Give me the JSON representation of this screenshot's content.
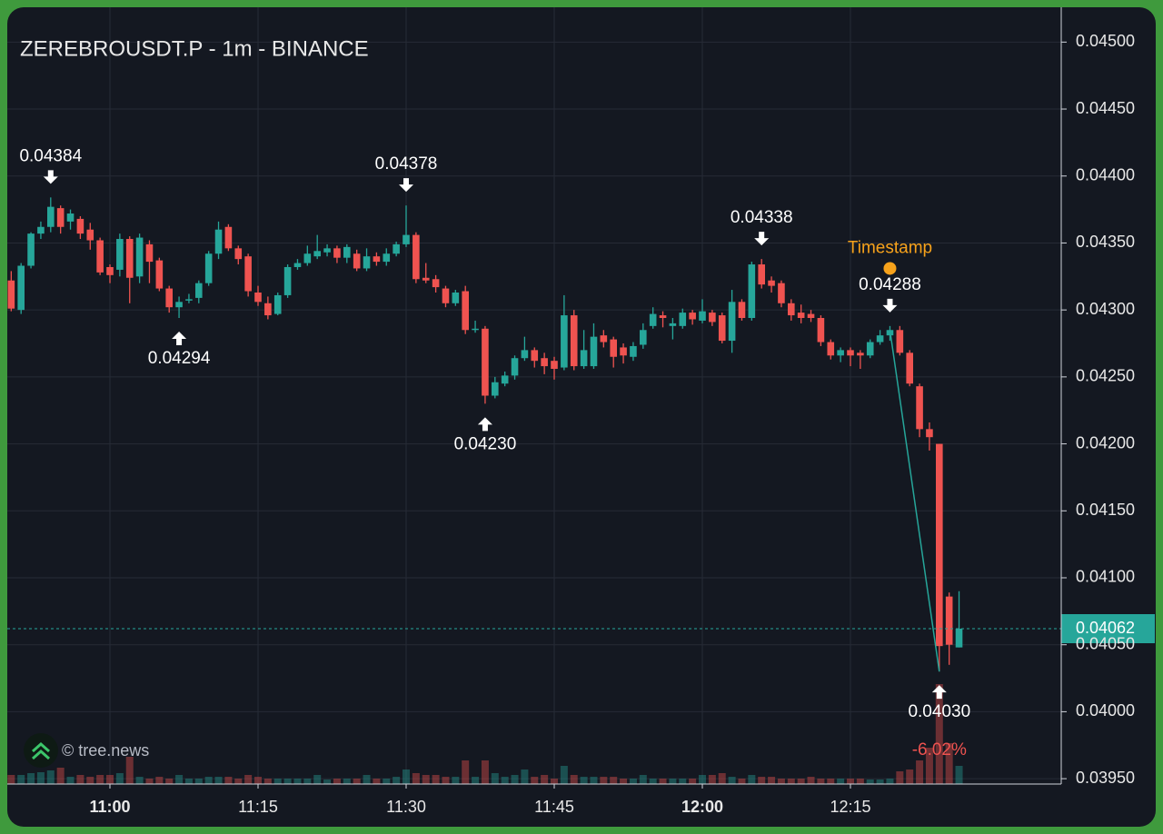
{
  "chart_data": {
    "type": "candlestick",
    "title": "ZEREBROUSDT.P - 1m - BINANCE",
    "watermark": "© tree.news",
    "change_label": "-6.02%",
    "up_color": "#26a69a",
    "down_color": "#ef5350",
    "grid": true,
    "x": [
      "10:50",
      "10:51",
      "10:52",
      "10:53",
      "10:54",
      "10:55",
      "10:56",
      "10:57",
      "10:58",
      "10:59",
      "11:00",
      "11:01",
      "11:02",
      "11:03",
      "11:04",
      "11:05",
      "11:06",
      "11:07",
      "11:08",
      "11:09",
      "11:10",
      "11:11",
      "11:12",
      "11:13",
      "11:14",
      "11:15",
      "11:16",
      "11:17",
      "11:18",
      "11:19",
      "11:20",
      "11:21",
      "11:22",
      "11:23",
      "11:24",
      "11:25",
      "11:26",
      "11:27",
      "11:28",
      "11:29",
      "11:30",
      "11:31",
      "11:32",
      "11:33",
      "11:34",
      "11:35",
      "11:36",
      "11:37",
      "11:38",
      "11:39",
      "11:40",
      "11:41",
      "11:42",
      "11:43",
      "11:44",
      "11:45",
      "11:46",
      "11:47",
      "11:48",
      "11:49",
      "11:50",
      "11:51",
      "11:52",
      "11:53",
      "11:54",
      "11:55",
      "11:56",
      "11:57",
      "11:58",
      "11:59",
      "12:00",
      "12:01",
      "12:02",
      "12:03",
      "12:04",
      "12:05",
      "12:06",
      "12:07",
      "12:08",
      "12:09",
      "12:10",
      "12:11",
      "12:12",
      "12:13",
      "12:14",
      "12:15",
      "12:16",
      "12:17",
      "12:18",
      "12:19",
      "12:20",
      "12:21",
      "12:22",
      "12:23",
      "12:24",
      "12:25",
      "12:26"
    ],
    "open": [
      0.04322,
      0.043,
      0.04333,
      0.04357,
      0.04362,
      0.04376,
      0.04366,
      0.04368,
      0.0436,
      0.04352,
      0.04332,
      0.0433,
      0.04353,
      0.04325,
      0.04349,
      0.04337,
      0.04316,
      0.04302,
      0.04307,
      0.04309,
      0.0432,
      0.04342,
      0.04362,
      0.04346,
      0.0434,
      0.04313,
      0.04305,
      0.04297,
      0.04311,
      0.04332,
      0.04335,
      0.0434,
      0.04343,
      0.04346,
      0.04339,
      0.04342,
      0.04331,
      0.0434,
      0.04336,
      0.04342,
      0.04349,
      0.04356,
      0.04324,
      0.04323,
      0.04316,
      0.04305,
      0.04314,
      0.04286,
      0.04286,
      0.04236,
      0.04245,
      0.04251,
      0.04264,
      0.0427,
      0.04264,
      0.04262,
      0.04257,
      0.04296,
      0.04258,
      0.04258,
      0.04281,
      0.04278,
      0.04272,
      0.04265,
      0.04274,
      0.04288,
      0.04296,
      0.04288,
      0.04288,
      0.04298,
      0.04292,
      0.04298,
      0.04296,
      0.04277,
      0.04306,
      0.04294,
      0.04334,
      0.04322,
      0.0432,
      0.04305,
      0.04298,
      0.04297,
      0.04294,
      0.04276,
      0.04266,
      0.0427,
      0.04268,
      0.04266,
      0.04276,
      0.04281,
      0.04285,
      0.04268,
      0.04243,
      0.04211,
      0.042,
      0.04086,
      0.04048
    ],
    "high": [
      0.04329,
      0.04335,
      0.04358,
      0.04366,
      0.04384,
      0.04378,
      0.04375,
      0.0437,
      0.04365,
      0.04354,
      0.04334,
      0.04357,
      0.04355,
      0.04357,
      0.04352,
      0.04339,
      0.04318,
      0.0431,
      0.04312,
      0.04322,
      0.04344,
      0.04366,
      0.04364,
      0.04348,
      0.04342,
      0.04318,
      0.0431,
      0.04313,
      0.04334,
      0.04338,
      0.04348,
      0.04356,
      0.04349,
      0.04348,
      0.04349,
      0.04345,
      0.04346,
      0.04343,
      0.04346,
      0.04351,
      0.04378,
      0.04358,
      0.04335,
      0.04326,
      0.04318,
      0.04315,
      0.04318,
      0.04292,
      0.04288,
      0.0425,
      0.04254,
      0.04266,
      0.0428,
      0.04272,
      0.04268,
      0.04265,
      0.04311,
      0.043,
      0.04285,
      0.0429,
      0.04285,
      0.0428,
      0.04275,
      0.04276,
      0.0429,
      0.04302,
      0.04299,
      0.04294,
      0.04301,
      0.043,
      0.04308,
      0.043,
      0.04298,
      0.04315,
      0.04308,
      0.04336,
      0.04338,
      0.04325,
      0.04322,
      0.04308,
      0.04304,
      0.043,
      0.04296,
      0.04278,
      0.04272,
      0.04272,
      0.0427,
      0.04278,
      0.04285,
      0.04288,
      0.04288,
      0.0427,
      0.04245,
      0.04216,
      0.042,
      0.04089,
      0.0409
    ],
    "low": [
      0.04299,
      0.04297,
      0.04331,
      0.04353,
      0.04358,
      0.04357,
      0.0436,
      0.04353,
      0.04345,
      0.04326,
      0.0432,
      0.04325,
      0.04305,
      0.0432,
      0.0432,
      0.04314,
      0.04298,
      0.04294,
      0.04305,
      0.04305,
      0.04318,
      0.04338,
      0.04344,
      0.04334,
      0.0431,
      0.04303,
      0.04293,
      0.04296,
      0.04309,
      0.0433,
      0.04333,
      0.04338,
      0.0434,
      0.04335,
      0.04335,
      0.04329,
      0.04329,
      0.04333,
      0.04333,
      0.0434,
      0.04347,
      0.0432,
      0.0432,
      0.04313,
      0.04302,
      0.04303,
      0.04282,
      0.04283,
      0.0423,
      0.04234,
      0.04243,
      0.04248,
      0.04262,
      0.04257,
      0.04252,
      0.04248,
      0.04255,
      0.04255,
      0.04256,
      0.04256,
      0.04272,
      0.04257,
      0.0426,
      0.04262,
      0.04271,
      0.04286,
      0.04287,
      0.04278,
      0.04286,
      0.04289,
      0.0429,
      0.04288,
      0.04275,
      0.04268,
      0.04292,
      0.04292,
      0.04316,
      0.04313,
      0.04302,
      0.04292,
      0.0429,
      0.04291,
      0.04273,
      0.04263,
      0.04261,
      0.04258,
      0.04256,
      0.04264,
      0.04274,
      0.04277,
      0.04266,
      0.04243,
      0.04205,
      0.04195,
      0.0403,
      0.04035,
      0.04048
    ],
    "close": [
      0.04301,
      0.04333,
      0.04357,
      0.04362,
      0.04377,
      0.04362,
      0.04372,
      0.04357,
      0.04352,
      0.04328,
      0.04326,
      0.04353,
      0.04324,
      0.04354,
      0.04336,
      0.04316,
      0.04302,
      0.04306,
      0.04308,
      0.0432,
      0.04342,
      0.0436,
      0.04346,
      0.04338,
      0.04314,
      0.04306,
      0.04296,
      0.04311,
      0.04332,
      0.04335,
      0.04342,
      0.04344,
      0.04346,
      0.04339,
      0.04347,
      0.04331,
      0.0434,
      0.04336,
      0.04342,
      0.04349,
      0.04356,
      0.04323,
      0.04322,
      0.04317,
      0.04305,
      0.04313,
      0.04285,
      0.04286,
      0.04236,
      0.04246,
      0.04251,
      0.04264,
      0.0427,
      0.04262,
      0.04258,
      0.04256,
      0.04296,
      0.04258,
      0.0427,
      0.0428,
      0.04276,
      0.04265,
      0.04266,
      0.04273,
      0.04285,
      0.04297,
      0.04294,
      0.0429,
      0.04298,
      0.04293,
      0.04299,
      0.04291,
      0.04277,
      0.04306,
      0.04294,
      0.04334,
      0.04319,
      0.04318,
      0.04305,
      0.04296,
      0.04294,
      0.04294,
      0.04276,
      0.04266,
      0.0427,
      0.04266,
      0.04266,
      0.04276,
      0.04281,
      0.04285,
      0.04268,
      0.04245,
      0.04211,
      0.04205,
      0.04049,
      0.0405,
      0.04062
    ],
    "volume": [
      10,
      10,
      12,
      13,
      15,
      18,
      8,
      10,
      8,
      10,
      10,
      12,
      30,
      8,
      6,
      8,
      6,
      10,
      6,
      6,
      8,
      8,
      8,
      6,
      10,
      8,
      6,
      6,
      6,
      6,
      6,
      10,
      5,
      6,
      6,
      6,
      10,
      6,
      6,
      8,
      16,
      12,
      10,
      10,
      8,
      8,
      26,
      8,
      26,
      12,
      8,
      10,
      16,
      8,
      10,
      6,
      20,
      10,
      8,
      8,
      8,
      8,
      6,
      6,
      10,
      6,
      6,
      6,
      6,
      6,
      10,
      10,
      12,
      8,
      6,
      10,
      8,
      8,
      6,
      6,
      6,
      8,
      6,
      6,
      6,
      6,
      6,
      5,
      5,
      6,
      14,
      16,
      26,
      40,
      110,
      45,
      20
    ],
    "ylim": [
      0.03946,
      0.04526
    ],
    "yticks": [
      {
        "value": 0.045,
        "label": "0.04500"
      },
      {
        "value": 0.0445,
        "label": "0.04450"
      },
      {
        "value": 0.044,
        "label": "0.04400"
      },
      {
        "value": 0.0435,
        "label": "0.04350"
      },
      {
        "value": 0.043,
        "label": "0.04300"
      },
      {
        "value": 0.0425,
        "label": "0.04250"
      },
      {
        "value": 0.042,
        "label": "0.04200"
      },
      {
        "value": 0.0415,
        "label": "0.04150"
      },
      {
        "value": 0.041,
        "label": "0.04100"
      },
      {
        "value": 0.0405,
        "label": "0.04050"
      },
      {
        "value": 0.04,
        "label": "0.04000"
      },
      {
        "value": 0.0395,
        "label": "0.03950"
      }
    ],
    "xticks": [
      "11:00",
      "11:15",
      "11:30",
      "11:45",
      "12:00",
      "12:15"
    ],
    "annotations": [
      {
        "x": "10:54",
        "value": 0.04384,
        "label": "0.04384",
        "kind": "high"
      },
      {
        "x": "11:07",
        "value": 0.04294,
        "label": "0.04294",
        "kind": "low"
      },
      {
        "x": "11:30",
        "value": 0.04378,
        "label": "0.04378",
        "kind": "high"
      },
      {
        "x": "11:38",
        "value": 0.0423,
        "label": "0.04230",
        "kind": "low"
      },
      {
        "x": "12:06",
        "value": 0.04338,
        "label": "0.04338",
        "kind": "high"
      },
      {
        "x": "12:19",
        "value": 0.04288,
        "label": "0.04288",
        "kind": "high"
      },
      {
        "x": "12:24",
        "value": 0.0403,
        "label": "0.04030",
        "kind": "low"
      }
    ],
    "timestamp": {
      "x": "12:19",
      "value": 0.04331,
      "label": "Timestamp",
      "color": "#f7a21b"
    },
    "trend_line": {
      "from": {
        "x": "12:19",
        "value": 0.04285
      },
      "to": {
        "x": "12:24",
        "value": 0.0403
      }
    },
    "last_price": {
      "value": 0.04062,
      "label": "0.04062"
    }
  }
}
